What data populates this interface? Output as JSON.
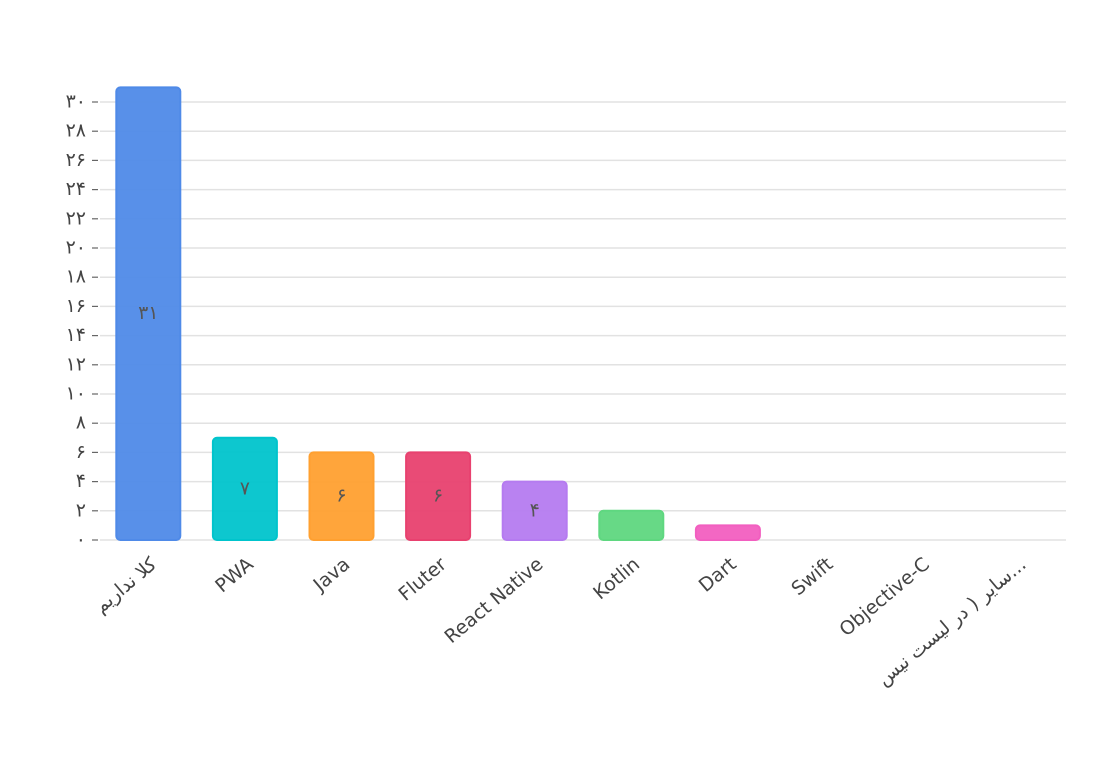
{
  "chart_data": {
    "type": "bar",
    "categories": [
      "کلا نداریم",
      "PWA",
      "Java",
      "Fluter",
      "React Native",
      "Kotlin",
      "Dart",
      "Swift",
      "Objective-C",
      "سایر ( در لیست نیس..."
    ],
    "values": [
      31,
      7,
      6,
      6,
      4,
      2,
      1,
      0,
      0,
      0
    ],
    "value_labels": [
      "۳۱",
      "۷",
      "۶",
      "۶",
      "۴",
      null,
      null,
      null,
      null,
      null
    ],
    "colors": [
      "#4f8ae8",
      "#00c4cc",
      "#ffa030",
      "#e8416f",
      "#b57bf0",
      "#5fd780",
      "#f25fc0",
      "#8d8d8d",
      "#4f8ae8",
      "#00c4cc"
    ],
    "ylim": [
      0,
      30
    ],
    "yticks": [
      {
        "value": 0,
        "label": "۰"
      },
      {
        "value": 2,
        "label": "۲"
      },
      {
        "value": 4,
        "label": "۴"
      },
      {
        "value": 6,
        "label": "۶"
      },
      {
        "value": 8,
        "label": "۸"
      },
      {
        "value": 10,
        "label": "۱۰"
      },
      {
        "value": 12,
        "label": "۱۲"
      },
      {
        "value": 14,
        "label": "۱۴"
      },
      {
        "value": 16,
        "label": "۱۶"
      },
      {
        "value": 18,
        "label": "۱۸"
      },
      {
        "value": 20,
        "label": "۲۰"
      },
      {
        "value": 22,
        "label": "۲۲"
      },
      {
        "value": 24,
        "label": "۲۴"
      },
      {
        "value": 26,
        "label": "۲۶"
      },
      {
        "value": 28,
        "label": "۲۸"
      },
      {
        "value": 30,
        "label": "۳۰"
      }
    ],
    "grid": true
  }
}
